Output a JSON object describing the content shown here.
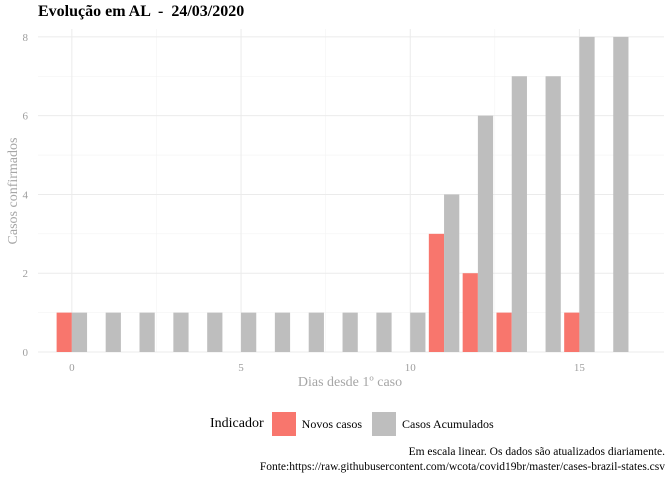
{
  "title": "Evolução em AL  -  24/03/2020",
  "chart_data": {
    "type": "bar",
    "title": "Evolução em AL  -  24/03/2020",
    "xlabel": "Dias desde 1º caso",
    "ylabel": "Casos confirmados",
    "x": [
      0,
      1,
      2,
      3,
      4,
      5,
      6,
      7,
      8,
      9,
      10,
      11,
      12,
      13,
      14,
      15,
      16
    ],
    "series": [
      {
        "name": "Novos casos",
        "color": "#F8766D",
        "values": [
          1,
          0,
          0,
          0,
          0,
          0,
          0,
          0,
          0,
          0,
          0,
          3,
          2,
          1,
          0,
          1,
          0
        ]
      },
      {
        "name": "Casos Acumulados",
        "color": "#BEBEBE",
        "values": [
          1,
          1,
          1,
          1,
          1,
          1,
          1,
          1,
          1,
          1,
          1,
          4,
          6,
          7,
          7,
          8,
          8
        ]
      }
    ],
    "xticks": [
      0,
      5,
      10,
      15
    ],
    "yticks": [
      0,
      2,
      4,
      6,
      8
    ],
    "xlim": [
      -1,
      17.5
    ],
    "ylim": [
      0,
      8.2
    ],
    "grid": true,
    "legend_position": "bottom"
  },
  "legend": {
    "title": "Indicador",
    "items": [
      {
        "label": "Novos casos",
        "color": "#F8766D"
      },
      {
        "label": "Casos Acumulados",
        "color": "#BEBEBE"
      }
    ]
  },
  "caption": {
    "line1": "Em escala linear. Os dados são atualizados diariamente.",
    "line2": "Fonte:https://raw.githubusercontent.com/wcota/covid19br/master/cases-brazil-states.csv"
  }
}
